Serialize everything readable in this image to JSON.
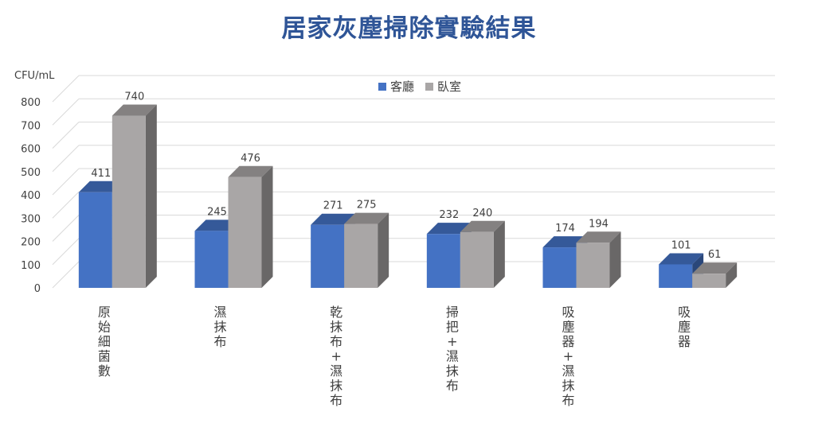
{
  "chart_data": {
    "type": "bar",
    "title": "居家灰塵掃除實驗結果",
    "ylabel": "CFU/mL",
    "ylim": [
      0,
      800
    ],
    "yticks": [
      0,
      100,
      200,
      300,
      400,
      500,
      600,
      700,
      800
    ],
    "grid": true,
    "legend_position": "top",
    "categories": [
      "原始細菌數",
      "濕抹布",
      "乾抹布+濕抹布",
      "掃把+濕抹布",
      "吸塵器+濕抹布",
      "吸塵器"
    ],
    "series": [
      {
        "name": "客廳",
        "values": [
          411,
          245,
          271,
          232,
          174,
          101
        ],
        "color": "#4472c4"
      },
      {
        "name": "臥室",
        "values": [
          740,
          476,
          275,
          240,
          194,
          61
        ],
        "color": "#a9a6a6"
      }
    ]
  }
}
